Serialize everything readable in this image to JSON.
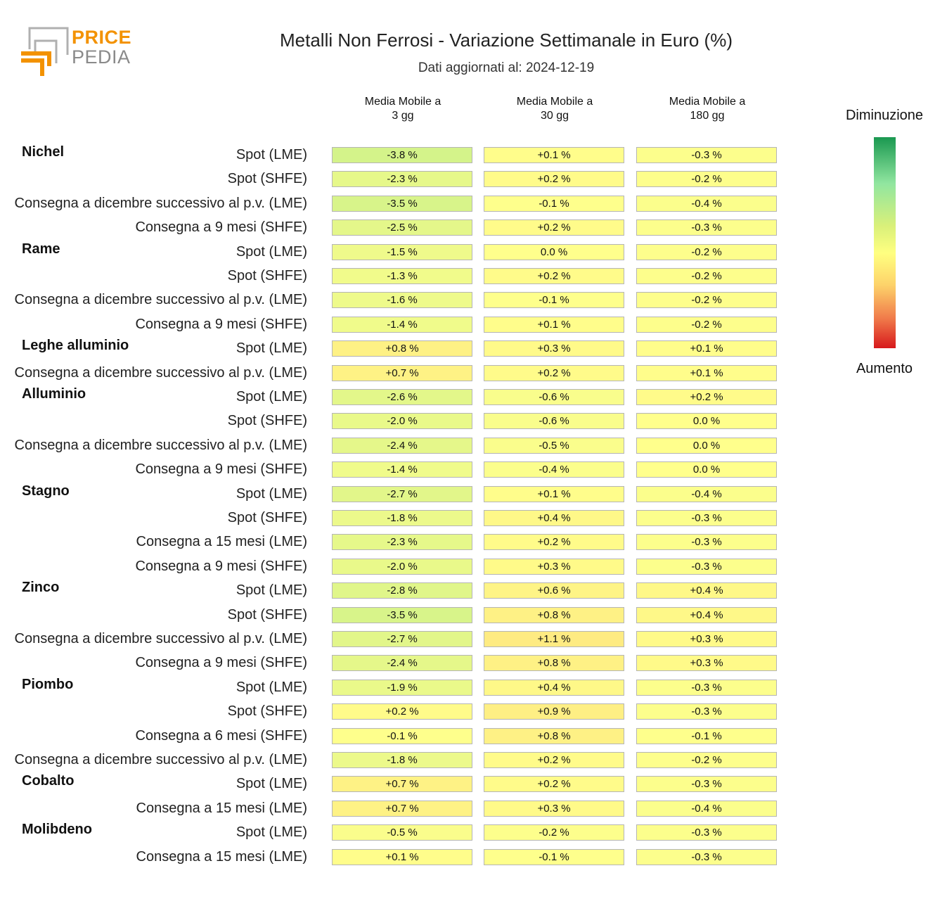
{
  "header": {
    "logo_price": "PRICE",
    "logo_pedia": "PEDIA",
    "title": "Metalli Non Ferrosi - Variazione Settimanale in Euro (%)",
    "subtitle": "Dati aggiornati al: 2024-12-19"
  },
  "legend": {
    "top_label": "Diminuzione",
    "bottom_label": "Aumento",
    "colors": [
      "#1a9850",
      "#91e6a0",
      "#d9f07a",
      "#ffff80",
      "#fdd36a",
      "#f07a4a",
      "#d7191c"
    ]
  },
  "chart_data": {
    "type": "heatmap",
    "title": "Metalli Non Ferrosi - Variazione Settimanale in Euro (%)",
    "subtitle": "Dati aggiornati al: 2024-12-19",
    "unit": "%",
    "columns": [
      {
        "line1": "Media Mobile a",
        "line2": "3 gg"
      },
      {
        "line1": "Media Mobile a",
        "line2": "30 gg"
      },
      {
        "line1": "Media Mobile a",
        "line2": "180 gg"
      }
    ],
    "groups": [
      {
        "name": "Nichel",
        "rows": [
          {
            "label": "Spot (LME)",
            "values": [
              -3.8,
              0.1,
              -0.3
            ]
          },
          {
            "label": "Spot (SHFE)",
            "values": [
              -2.3,
              0.2,
              -0.2
            ]
          },
          {
            "label": "Consegna a dicembre successivo al p.v. (LME)",
            "values": [
              -3.5,
              -0.1,
              -0.4
            ]
          },
          {
            "label": "Consegna a 9 mesi (SHFE)",
            "values": [
              -2.5,
              0.2,
              -0.3
            ]
          }
        ]
      },
      {
        "name": "Rame",
        "rows": [
          {
            "label": "Spot (LME)",
            "values": [
              -1.5,
              0.0,
              -0.2
            ]
          },
          {
            "label": "Spot (SHFE)",
            "values": [
              -1.3,
              0.2,
              -0.2
            ]
          },
          {
            "label": "Consegna a dicembre successivo al p.v. (LME)",
            "values": [
              -1.6,
              -0.1,
              -0.2
            ]
          },
          {
            "label": "Consegna a 9 mesi (SHFE)",
            "values": [
              -1.4,
              0.1,
              -0.2
            ]
          }
        ]
      },
      {
        "name": "Leghe alluminio",
        "rows": [
          {
            "label": "Spot (LME)",
            "values": [
              0.8,
              0.3,
              0.1
            ]
          },
          {
            "label": "Consegna a dicembre successivo al p.v. (LME)",
            "values": [
              0.7,
              0.2,
              0.1
            ]
          }
        ]
      },
      {
        "name": "Alluminio",
        "rows": [
          {
            "label": "Spot (LME)",
            "values": [
              -2.6,
              -0.6,
              0.2
            ]
          },
          {
            "label": "Spot (SHFE)",
            "values": [
              -2.0,
              -0.6,
              0.0
            ]
          },
          {
            "label": "Consegna a dicembre successivo al p.v. (LME)",
            "values": [
              -2.4,
              -0.5,
              0.0
            ]
          },
          {
            "label": "Consegna a 9 mesi (SHFE)",
            "values": [
              -1.4,
              -0.4,
              0.0
            ]
          }
        ]
      },
      {
        "name": "Stagno",
        "rows": [
          {
            "label": "Spot (LME)",
            "values": [
              -2.7,
              0.1,
              -0.4
            ]
          },
          {
            "label": "Spot (SHFE)",
            "values": [
              -1.8,
              0.4,
              -0.3
            ]
          },
          {
            "label": "Consegna a 15 mesi (LME)",
            "values": [
              -2.3,
              0.2,
              -0.3
            ]
          },
          {
            "label": "Consegna a 9 mesi (SHFE)",
            "values": [
              -2.0,
              0.3,
              -0.3
            ]
          }
        ]
      },
      {
        "name": "Zinco",
        "rows": [
          {
            "label": "Spot (LME)",
            "values": [
              -2.8,
              0.6,
              0.4
            ]
          },
          {
            "label": "Spot (SHFE)",
            "values": [
              -3.5,
              0.8,
              0.4
            ]
          },
          {
            "label": "Consegna a dicembre successivo al p.v. (LME)",
            "values": [
              -2.7,
              1.1,
              0.3
            ]
          },
          {
            "label": "Consegna a 9 mesi (SHFE)",
            "values": [
              -2.4,
              0.8,
              0.3
            ]
          }
        ]
      },
      {
        "name": "Piombo",
        "rows": [
          {
            "label": "Spot (LME)",
            "values": [
              -1.9,
              0.4,
              -0.3
            ]
          },
          {
            "label": "Spot (SHFE)",
            "values": [
              0.2,
              0.9,
              -0.3
            ]
          },
          {
            "label": "Consegna a 6 mesi (SHFE)",
            "values": [
              -0.1,
              0.8,
              -0.1
            ]
          },
          {
            "label": "Consegna a dicembre successivo al p.v. (LME)",
            "values": [
              -1.8,
              0.2,
              -0.2
            ]
          }
        ]
      },
      {
        "name": "Cobalto",
        "rows": [
          {
            "label": "Spot (LME)",
            "values": [
              0.7,
              0.2,
              -0.3
            ]
          },
          {
            "label": "Consegna a 15 mesi (LME)",
            "values": [
              0.7,
              0.3,
              -0.4
            ]
          }
        ]
      },
      {
        "name": "Molibdeno",
        "rows": [
          {
            "label": "Spot (LME)",
            "values": [
              -0.5,
              -0.2,
              -0.3
            ]
          },
          {
            "label": "Consegna a 15 mesi (LME)",
            "values": [
              0.1,
              -0.1,
              -0.3
            ]
          }
        ]
      }
    ]
  }
}
